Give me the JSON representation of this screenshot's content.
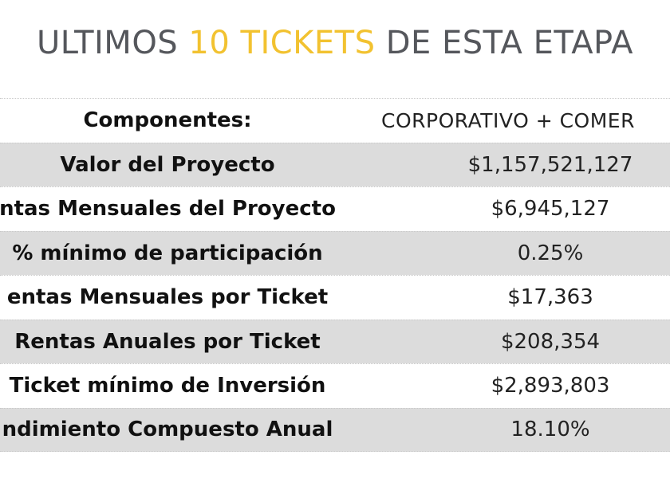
{
  "title": {
    "part1": "ULTIMOS ",
    "highlight": "10 TICKETS",
    "part2": " DE ESTA ETAPA",
    "highlight_color": "#f2c230"
  },
  "table": {
    "header": {
      "label": "Componentes:",
      "value": "CORPORATIVO + COMER"
    },
    "rows": [
      {
        "label": "Valor del Proyecto",
        "value": "$1,157,521,127"
      },
      {
        "label": "ntas Mensuales del Proyecto",
        "value": "$6,945,127"
      },
      {
        "label": "% mínimo de participación",
        "value": "0.25%"
      },
      {
        "label": "entas Mensuales por Ticket",
        "value": "$17,363"
      },
      {
        "label": "Rentas Anuales por Ticket",
        "value": "$208,354"
      },
      {
        "label": "Ticket mínimo de Inversión",
        "value": "$2,893,803"
      },
      {
        "label": "ndimiento Compuesto Anual",
        "value": "18.10%"
      }
    ]
  }
}
